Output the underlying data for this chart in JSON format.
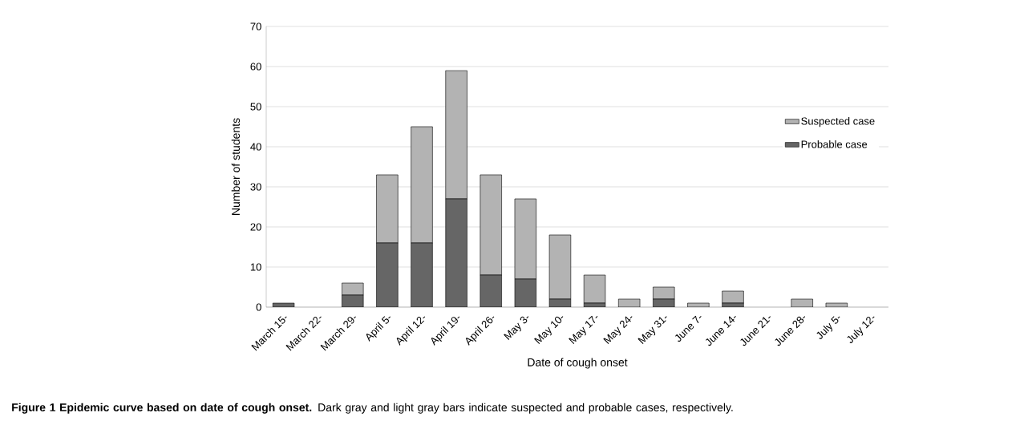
{
  "chart_data": {
    "type": "bar",
    "stacked": true,
    "xlabel": "Date of cough onset",
    "ylabel": "Number of students",
    "categories": [
      "March 15-",
      "March 22-",
      "March 29-",
      "April 5-",
      "April 12-",
      "April 19-",
      "April 26-",
      "May 3-",
      "May 10-",
      "May 17-",
      "May 24-",
      "May 31-",
      "June 7-",
      "June 14-",
      "June 21-",
      "June 28-",
      "July 5-",
      "July 12-"
    ],
    "series": [
      {
        "name": "Probable case",
        "color": "#666666",
        "values": [
          1,
          0,
          3,
          16,
          16,
          27,
          8,
          7,
          2,
          1,
          0,
          2,
          0,
          1,
          0,
          0,
          0,
          0
        ]
      },
      {
        "name": "Suspected case",
        "color": "#b3b3b3",
        "values": [
          0,
          0,
          3,
          17,
          29,
          32,
          25,
          20,
          16,
          7,
          2,
          3,
          1,
          3,
          0,
          2,
          1,
          0
        ]
      }
    ],
    "ylim": [
      0,
      70
    ],
    "yticks": [
      0,
      10,
      20,
      30,
      40,
      50,
      60,
      70
    ],
    "grid": "y",
    "legend": "right",
    "annotations": [
      "**Figure 1 Epidemic curve based on date of cough onset.** Dark gray and light gray bars indicate suspected and probable cases, respectively."
    ]
  }
}
